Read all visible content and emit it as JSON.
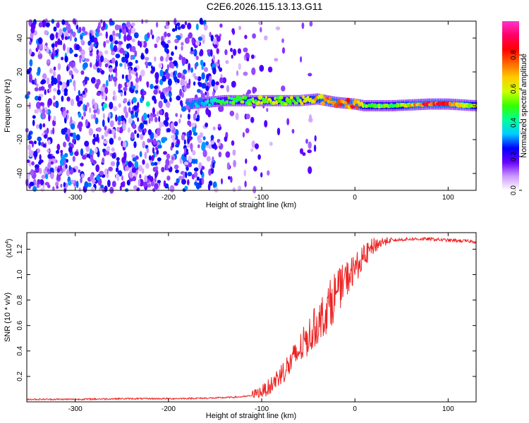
{
  "title": "C2E6.2026.115.13.13.G11",
  "chart_data": [
    {
      "type": "heatmap",
      "xlabel": "Height of straight line (km)",
      "ylabel": "Frequency (Hz)",
      "xlim": [
        -352,
        130
      ],
      "ylim": [
        -50,
        50
      ],
      "xticks": [
        -300,
        -200,
        -100,
        0,
        100
      ],
      "yticks": [
        -40,
        -20,
        0,
        20,
        40
      ],
      "colorbar": {
        "label": "Normalized spectral amplitude",
        "range": [
          0,
          1
        ],
        "ticks": [
          0.0,
          0.2,
          0.4,
          0.6,
          0.8
        ],
        "colors": [
          "#ffffff",
          "#cc99ff",
          "#6600ff",
          "#0000ff",
          "#00ccff",
          "#00ff99",
          "#33ff00",
          "#ccff00",
          "#ffcc00",
          "#ff6600",
          "#ff0000",
          "#ff0066",
          "#ff33cc"
        ]
      },
      "ridge": {
        "x": [
          -180,
          -160,
          -140,
          -120,
          -100,
          -80,
          -60,
          -40,
          -20,
          0,
          10,
          40,
          80,
          100,
          130
        ],
        "frequency": [
          1,
          2,
          3,
          3,
          3,
          3,
          3,
          4,
          2,
          1,
          0,
          0,
          1,
          1,
          0
        ],
        "amplitude": [
          0.3,
          0.4,
          0.5,
          0.55,
          0.6,
          0.6,
          0.6,
          0.7,
          0.8,
          0.85,
          0.55,
          0.55,
          0.9,
          0.9,
          0.6
        ]
      },
      "noise_region": {
        "x": [
          -352,
          -100
        ],
        "amplitude": 0.2
      }
    },
    {
      "type": "line",
      "xlabel": "Height of straight line (km)",
      "ylabel": "SNR (10 * v/v)",
      "yscale_label": "(x10",
      "yscale_exp": "4",
      "xlim": [
        -352,
        130
      ],
      "ylim": [
        0,
        1.33
      ],
      "xticks": [
        -300,
        -200,
        -100,
        0,
        100
      ],
      "yticks": [
        0.2,
        0.4,
        0.6,
        0.8,
        1.0,
        1.2
      ],
      "series": [
        {
          "color": "#ee2222",
          "x": [
            -352,
            -300,
            -250,
            -200,
            -150,
            -120,
            -100,
            -90,
            -80,
            -70,
            -60,
            -50,
            -40,
            -30,
            -20,
            -10,
            0,
            10,
            20,
            30,
            40,
            60,
            80,
            100,
            130
          ],
          "y": [
            0.02,
            0.02,
            0.025,
            0.025,
            0.03,
            0.04,
            0.06,
            0.1,
            0.18,
            0.25,
            0.35,
            0.45,
            0.55,
            0.65,
            0.78,
            0.9,
            1.0,
            1.1,
            1.2,
            1.24,
            1.27,
            1.28,
            1.28,
            1.27,
            1.26
          ]
        }
      ]
    }
  ]
}
